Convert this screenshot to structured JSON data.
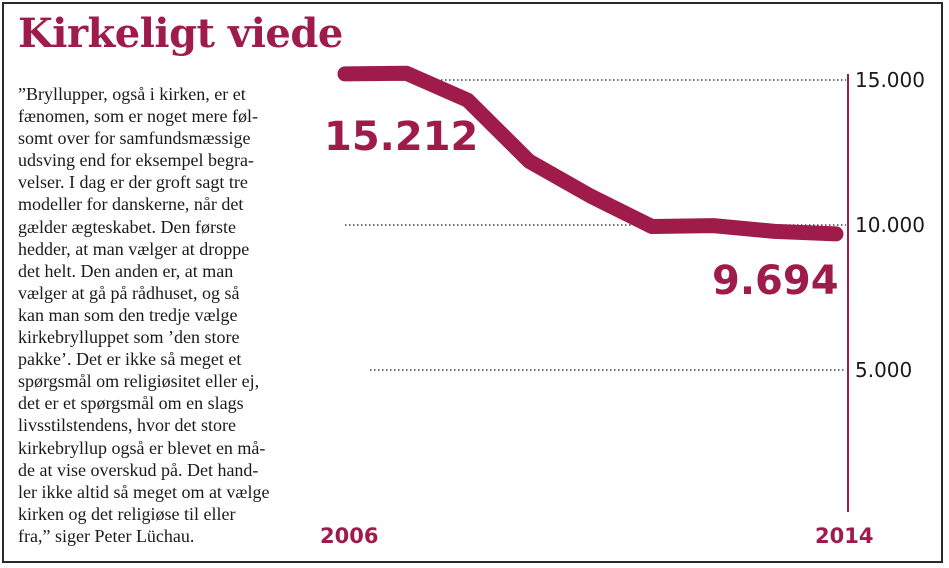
{
  "title": "Kirkeligt viede",
  "quote": "”Bryllupper, også i kirken, er et\nfænomen, som er noget mere føl-\nsomt over for samfundsmæssige\nudsving end for eksempel begra-\nvelser. I dag er der groft sagt tre\nmodeller for danskerne, når det\ngælder ægteskabet. Den første\nhedder, at man vælger at droppe\ndet helt. Den anden er, at man\nvælger at gå på rådhuset, og så\nkan man som den tredje vælge\nkirkebrylluppet som ’den store\npakke’. Det er ikke så meget et\nspørgsmål om religiøsitet eller ej,\ndet er et spørgsmål om en slags\nlivsstilstendens, hvor det store\nkirkebryllup også er blevet en må-\nde at vise overskud på. Det hand-\nler ikke altid så meget om at vælge\nkirken og det religiøse til eller\nfra,” siger Peter Lüchau.",
  "colors": {
    "accent": "#9e1b4a",
    "grid": "#444444",
    "text": "#1a1a1a"
  },
  "chart_data": {
    "type": "line",
    "title": "Kirkeligt viede",
    "x": [
      2006,
      2007,
      2008,
      2009,
      2010,
      2011,
      2012,
      2013,
      2014
    ],
    "series": [
      {
        "name": "Kirkeligt viede",
        "values": [
          15212,
          15230,
          14300,
          12200,
          11000,
          9950,
          9980,
          9780,
          9694
        ]
      }
    ],
    "xlim": [
      2006,
      2014
    ],
    "ylim": [
      0,
      15000
    ],
    "yticks": [
      5000,
      10000,
      15000
    ],
    "ytick_labels": [
      "5.000",
      "10.000",
      "15.000"
    ],
    "xtick_labels": [
      "2006",
      "2014"
    ],
    "callouts": {
      "start": "15.212",
      "end": "9.694"
    },
    "grid": "dotted horizontal",
    "axis_side": "right"
  }
}
